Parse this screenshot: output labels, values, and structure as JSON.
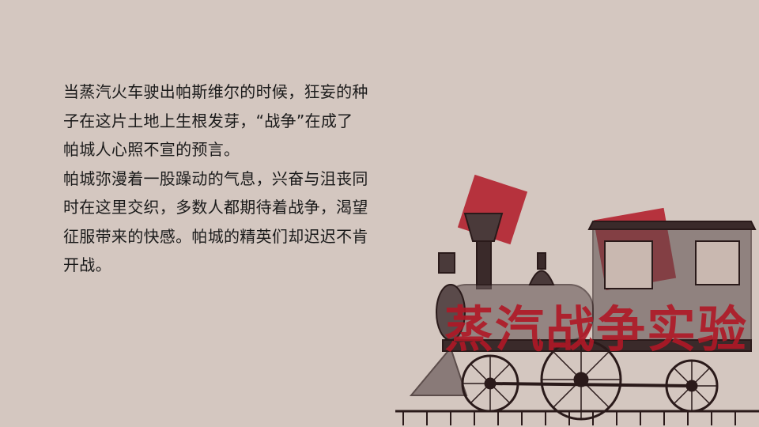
{
  "paragraphs": [
    "当蒸汽火车驶出帕斯维尔的时候，狂妄的种\n子在这片土地上生根发芽，“战争”在成了\n帕城人心照不宣的预言。",
    "帕城弥漫着一股躁动的气息，兴奋与沮丧同\n时在这里交织，多数人都期待着战争，渴望\n征服带来的快感。帕城的精英们却迟迟不肯\n开战。"
  ],
  "stamp_text": "蒸汽战争实验",
  "colors": {
    "background": "#d4c7c0",
    "accent_red": "#b01826",
    "ink": "#2a1a1a"
  }
}
